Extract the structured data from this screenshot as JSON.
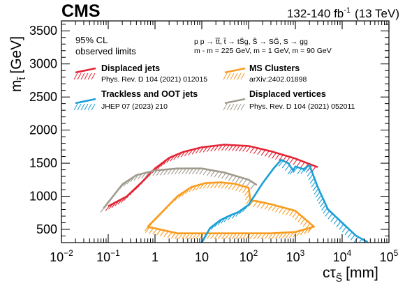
{
  "header": {
    "experiment": "CMS",
    "luminosity": "132-140 fb",
    "lumi_exp": "-1",
    "energy": "(13 TeV)"
  },
  "annotations": {
    "cl_line1": "95% CL",
    "cl_line2": "observed limits",
    "process": "p p → t̃t̃,  t̃ → tS̃g,  S̃ → SG̃, S → gg",
    "masses": "m  - m  = 225 GeV,  m  = 1 GeV,  m  = 90 GeV"
  },
  "axes": {
    "xlabel": "cτ",
    "xlabel_sub": "S̃",
    "xlabel_unit": "[mm]",
    "ylabel": "m",
    "ylabel_sub": "t̃",
    "ylabel_unit": "[GeV]",
    "xticks": [
      {
        "base": "10",
        "exp": "−2",
        "v": 0.01
      },
      {
        "base": "10",
        "exp": "−1",
        "v": 0.1
      },
      {
        "base": "1",
        "exp": "",
        "v": 1
      },
      {
        "base": "10",
        "exp": "",
        "v": 10
      },
      {
        "base": "10",
        "exp": "2",
        "v": 100
      },
      {
        "base": "10",
        "exp": "3",
        "v": 1000
      },
      {
        "base": "10",
        "exp": "4",
        "v": 10000
      },
      {
        "base": "10",
        "exp": "5",
        "v": 100000
      }
    ],
    "yticks": [
      "500",
      "1000",
      "1500",
      "2000",
      "2500",
      "3000",
      "3500"
    ]
  },
  "legend": [
    {
      "name": "Displaced jets",
      "ref": "Phys. Rev. D 104 (2021) 012015",
      "color": "#e42536"
    },
    {
      "name": "MS Clusters",
      "ref": "arXiv:2402.01898",
      "color": "#f89c20"
    },
    {
      "name": "Trackless and OOT jets",
      "ref": "JHEP 07 (2023) 210",
      "color": "#1a9fd6"
    },
    {
      "name": "Displaced vertices",
      "ref": "Phys. Rev. D 104 (2021) 052011",
      "color": "#a09a8e"
    }
  ],
  "chart_data": {
    "type": "line",
    "x_scale": "log",
    "xlim": [
      0.01,
      100000
    ],
    "ylim": [
      300,
      3650
    ],
    "grid": false,
    "legend_position": "top",
    "series": [
      {
        "name": "Displaced jets",
        "color": "#e42536",
        "x": [
          0.1,
          0.25,
          0.5,
          1,
          2,
          4,
          10,
          30,
          100,
          300,
          1000,
          3000
        ],
        "y": [
          850,
          1000,
          1200,
          1420,
          1580,
          1670,
          1740,
          1780,
          1760,
          1680,
          1570,
          1440
        ]
      },
      {
        "name": "Displaced vertices",
        "color": "#a09a8e",
        "x": [
          0.08,
          0.2,
          0.4,
          1,
          3,
          10,
          30,
          100,
          150
        ],
        "y": [
          820,
          1180,
          1320,
          1390,
          1420,
          1420,
          1360,
          1250,
          1170
        ]
      },
      {
        "name": "MS Clusters",
        "color": "#f89c20",
        "x": [
          0.7,
          1.5,
          3,
          6,
          12,
          25,
          50,
          100,
          110,
          140,
          300,
          1000,
          2500,
          1000,
          300,
          100,
          30,
          10,
          3,
          0.7
        ],
        "y": [
          540,
          780,
          1000,
          1140,
          1200,
          1210,
          1190,
          1130,
          930,
          930,
          880,
          780,
          540,
          460,
          440,
          440,
          440,
          440,
          440,
          540
        ]
      },
      {
        "name": "Trackless and OOT jets",
        "color": "#1a9fd6",
        "x": [
          10,
          15,
          25,
          40,
          60,
          100,
          200,
          350,
          500,
          700,
          900,
          1000,
          1500,
          2000,
          3000,
          5000,
          10000,
          20000,
          35000
        ],
        "y": [
          300,
          520,
          640,
          710,
          760,
          870,
          1200,
          1430,
          1550,
          1500,
          1390,
          1450,
          1410,
          1470,
          1140,
          800,
          600,
          400,
          310
        ]
      }
    ]
  }
}
